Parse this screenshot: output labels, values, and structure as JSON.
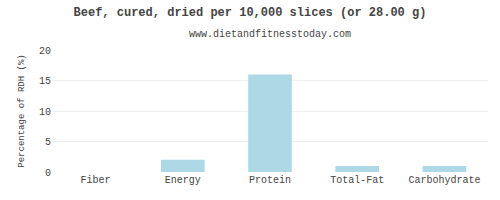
{
  "chart_data": {
    "type": "bar",
    "title": "Beef, cured, dried per 10,000 slices (or 28.00 g)",
    "subtitle": "www.dietandfitnesstoday.com",
    "categories": [
      "Fiber",
      "Energy",
      "Protein",
      "Total-Fat",
      "Carbohydrate"
    ],
    "values": [
      0,
      2,
      16,
      1,
      1
    ],
    "color": "#add8e6",
    "ylabel": "Percentage of RDH (%)",
    "ylim": [
      0,
      20
    ],
    "yticks": [
      0,
      5,
      10,
      15,
      20
    ],
    "grid": true
  }
}
